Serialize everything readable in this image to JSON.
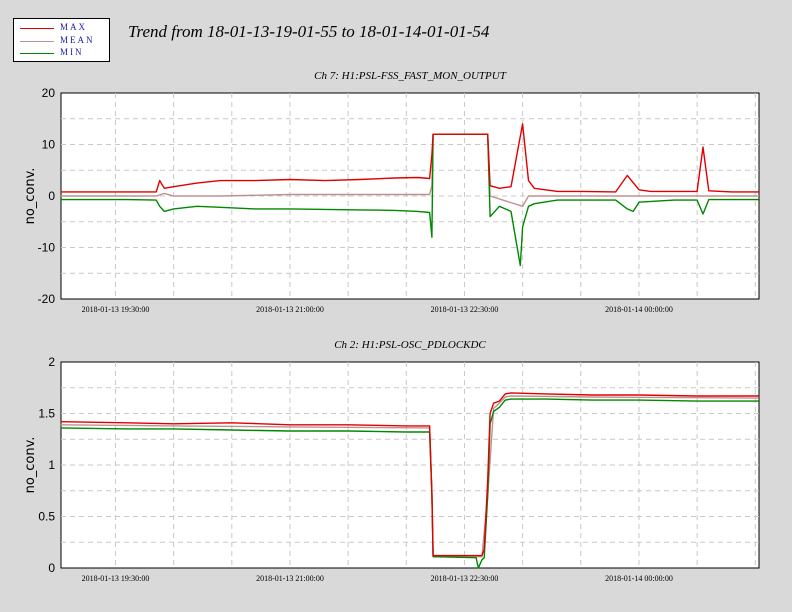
{
  "legend": {
    "items": [
      {
        "label": "MAX",
        "color": "#e00000"
      },
      {
        "label": "MEAN",
        "color": "#c09090"
      },
      {
        "label": "MIN",
        "color": "#008800"
      }
    ]
  },
  "title": "Trend from 18-01-13-19-01-55 to 18-01-14-01-01-54",
  "chart_data": [
    {
      "type": "line",
      "title": "Ch 7: H1:PSL-FSS_FAST_MON_OUTPUT",
      "ylabel": "no_conv.",
      "ylim": [
        -20,
        20
      ],
      "yticks": [
        -20,
        -10,
        0,
        10,
        20
      ],
      "xlim_hours": [
        19.0319,
        25.0317
      ],
      "xticks": [
        {
          "t": 19.5,
          "label": "2018-01-13 19:30:00"
        },
        {
          "t": 21.0,
          "label": "2018-01-13 21:00:00"
        },
        {
          "t": 22.5,
          "label": "2018-01-13 22:30:00"
        },
        {
          "t": 24.0,
          "label": "2018-01-14 00:00:00"
        }
      ],
      "grid": true,
      "series": [
        {
          "name": "MAX",
          "color": "#e00000",
          "x": [
            19.03,
            19.6,
            19.85,
            19.88,
            19.92,
            20.0,
            20.2,
            20.4,
            20.7,
            21.0,
            21.3,
            21.6,
            21.9,
            22.1,
            22.2,
            22.22,
            22.23,
            22.25,
            22.5,
            22.7,
            22.72,
            22.8,
            22.9,
            23.0,
            23.05,
            23.1,
            23.3,
            23.5,
            23.8,
            23.9,
            24.0,
            24.1,
            24.3,
            24.5,
            24.55,
            24.6,
            24.8,
            25.03
          ],
          "y": [
            0.8,
            0.8,
            0.8,
            3.0,
            1.5,
            1.8,
            2.5,
            3.0,
            3.0,
            3.2,
            3.0,
            3.2,
            3.5,
            3.6,
            3.4,
            8.0,
            12.0,
            12.0,
            12.0,
            12.0,
            2.0,
            1.5,
            1.8,
            14.0,
            3.0,
            1.5,
            0.9,
            0.9,
            0.8,
            4.0,
            1.2,
            0.9,
            0.9,
            0.9,
            9.5,
            1.0,
            0.8,
            0.8
          ]
        },
        {
          "name": "MEAN",
          "color": "#c09090",
          "x": [
            19.03,
            19.85,
            19.92,
            20.0,
            20.4,
            21.0,
            21.6,
            22.2,
            22.22,
            22.23,
            22.25,
            22.7,
            22.72,
            23.0,
            23.05,
            23.9,
            24.0,
            25.03
          ],
          "y": [
            0.0,
            0.0,
            0.5,
            0.0,
            0.0,
            0.3,
            0.3,
            0.3,
            2.0,
            12.0,
            12.0,
            12.0,
            0.0,
            -2.0,
            0.0,
            0.0,
            0.0,
            0.0
          ]
        },
        {
          "name": "MIN",
          "color": "#008800",
          "x": [
            19.03,
            19.6,
            19.85,
            19.88,
            19.92,
            20.0,
            20.2,
            20.4,
            20.7,
            21.0,
            21.3,
            21.6,
            21.9,
            22.1,
            22.2,
            22.22,
            22.23,
            22.25,
            22.5,
            22.7,
            22.72,
            22.8,
            22.9,
            22.98,
            23.0,
            23.05,
            23.1,
            23.3,
            23.5,
            23.8,
            23.9,
            23.95,
            24.0,
            24.3,
            24.5,
            24.55,
            24.6,
            25.03
          ],
          "y": [
            -0.7,
            -0.7,
            -0.8,
            -2.0,
            -3.0,
            -2.5,
            -2.0,
            -2.2,
            -2.5,
            -2.5,
            -2.6,
            -2.7,
            -2.8,
            -3.0,
            -3.2,
            -8.0,
            12.0,
            12.0,
            12.0,
            12.0,
            -4.0,
            -2.0,
            -3.0,
            -13.5,
            -6.0,
            -2.0,
            -1.5,
            -0.8,
            -0.8,
            -0.8,
            -2.5,
            -3.0,
            -1.2,
            -0.8,
            -0.8,
            -3.5,
            -0.7,
            -0.7
          ]
        }
      ]
    },
    {
      "type": "line",
      "title": "Ch 2: H1:PSL-OSC_PDLOCKDC",
      "ylabel": "no_conv.",
      "ylim": [
        0,
        2
      ],
      "yticks": [
        0,
        0.5,
        1,
        1.5,
        2
      ],
      "xlim_hours": [
        19.0319,
        25.0317
      ],
      "xticks": [
        {
          "t": 19.5,
          "label": "2018-01-13 19:30:00"
        },
        {
          "t": 21.0,
          "label": "2018-01-13 21:00:00"
        },
        {
          "t": 22.5,
          "label": "2018-01-13 22:30:00"
        },
        {
          "t": 24.0,
          "label": "2018-01-14 00:00:00"
        }
      ],
      "grid": true,
      "series": [
        {
          "name": "MAX",
          "color": "#e00000",
          "x": [
            19.03,
            19.6,
            20.0,
            20.5,
            21.0,
            21.5,
            22.0,
            22.2,
            22.22,
            22.23,
            22.6,
            22.65,
            22.67,
            22.7,
            22.72,
            22.75,
            22.8,
            22.85,
            22.9,
            23.2,
            23.6,
            24.0,
            24.5,
            25.03
          ],
          "y": [
            1.42,
            1.41,
            1.4,
            1.41,
            1.39,
            1.39,
            1.38,
            1.38,
            0.72,
            0.12,
            0.12,
            0.12,
            0.18,
            0.85,
            1.5,
            1.6,
            1.62,
            1.69,
            1.7,
            1.69,
            1.68,
            1.68,
            1.67,
            1.67
          ]
        },
        {
          "name": "MEAN",
          "color": "#c09090",
          "x": [
            19.03,
            20.0,
            21.0,
            22.2,
            22.22,
            22.23,
            22.6,
            22.65,
            22.7,
            22.75,
            22.8,
            22.85,
            22.9,
            23.6,
            25.03
          ],
          "y": [
            1.39,
            1.38,
            1.37,
            1.36,
            0.72,
            0.11,
            0.11,
            0.11,
            0.7,
            1.55,
            1.6,
            1.66,
            1.67,
            1.66,
            1.65
          ]
        },
        {
          "name": "MIN",
          "color": "#008800",
          "x": [
            19.03,
            19.6,
            20.0,
            20.5,
            21.0,
            21.5,
            22.0,
            22.2,
            22.22,
            22.23,
            22.6,
            22.62,
            22.65,
            22.67,
            22.7,
            22.72,
            22.75,
            22.8,
            22.85,
            22.9,
            23.2,
            23.6,
            24.0,
            24.5,
            25.03
          ],
          "y": [
            1.36,
            1.35,
            1.35,
            1.34,
            1.33,
            1.33,
            1.32,
            1.32,
            0.72,
            0.11,
            0.1,
            0.0,
            0.08,
            0.1,
            0.7,
            1.4,
            1.52,
            1.56,
            1.63,
            1.64,
            1.64,
            1.63,
            1.63,
            1.62,
            1.62
          ]
        }
      ]
    }
  ]
}
